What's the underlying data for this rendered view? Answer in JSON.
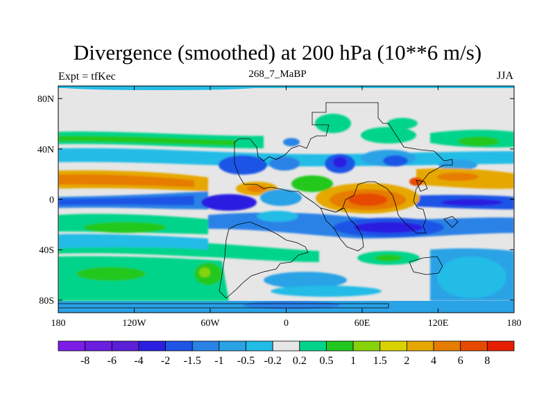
{
  "title": "Divergence (smoothed) at 200 hPa (10**6 m/s)",
  "subtitle_left": "Expt = tfKec",
  "subtitle_center": "268_7_MaBP",
  "subtitle_right": "JJA",
  "map": {
    "lon_range": [
      -180,
      180
    ],
    "lat_range": [
      -90,
      90
    ],
    "lon_ticks": [
      {
        "value": -180,
        "label": "180"
      },
      {
        "value": -120,
        "label": "120W"
      },
      {
        "value": -60,
        "label": "60W"
      },
      {
        "value": 0,
        "label": "0"
      },
      {
        "value": 60,
        "label": "60E"
      },
      {
        "value": 120,
        "label": "120E"
      },
      {
        "value": 180,
        "label": "180"
      }
    ],
    "lat_ticks": [
      {
        "value": 80,
        "label": "80N"
      },
      {
        "value": 40,
        "label": "40N"
      },
      {
        "value": 0,
        "label": "0"
      },
      {
        "value": -40,
        "label": "40S"
      },
      {
        "value": -80,
        "label": "80S"
      }
    ],
    "background_color": "#e6e6e6"
  },
  "colorbar": {
    "colors": [
      "#7d1ee6",
      "#6b1edf",
      "#5a1fd6",
      "#2a1fe0",
      "#1f55e6",
      "#2a82e6",
      "#2aa2e6",
      "#22bce6",
      "#e6e6e6",
      "#00d48a",
      "#22c81e",
      "#88d20a",
      "#d8d200",
      "#e6a800",
      "#e67c00",
      "#e64a00",
      "#e61e00"
    ],
    "labels": [
      "-8",
      "-6",
      "-4",
      "-2",
      "-1.5",
      "-1",
      "-0.5",
      "-0.2",
      "0.2",
      "0.5",
      "1",
      "1.5",
      "2",
      "4",
      "6",
      "8"
    ]
  }
}
